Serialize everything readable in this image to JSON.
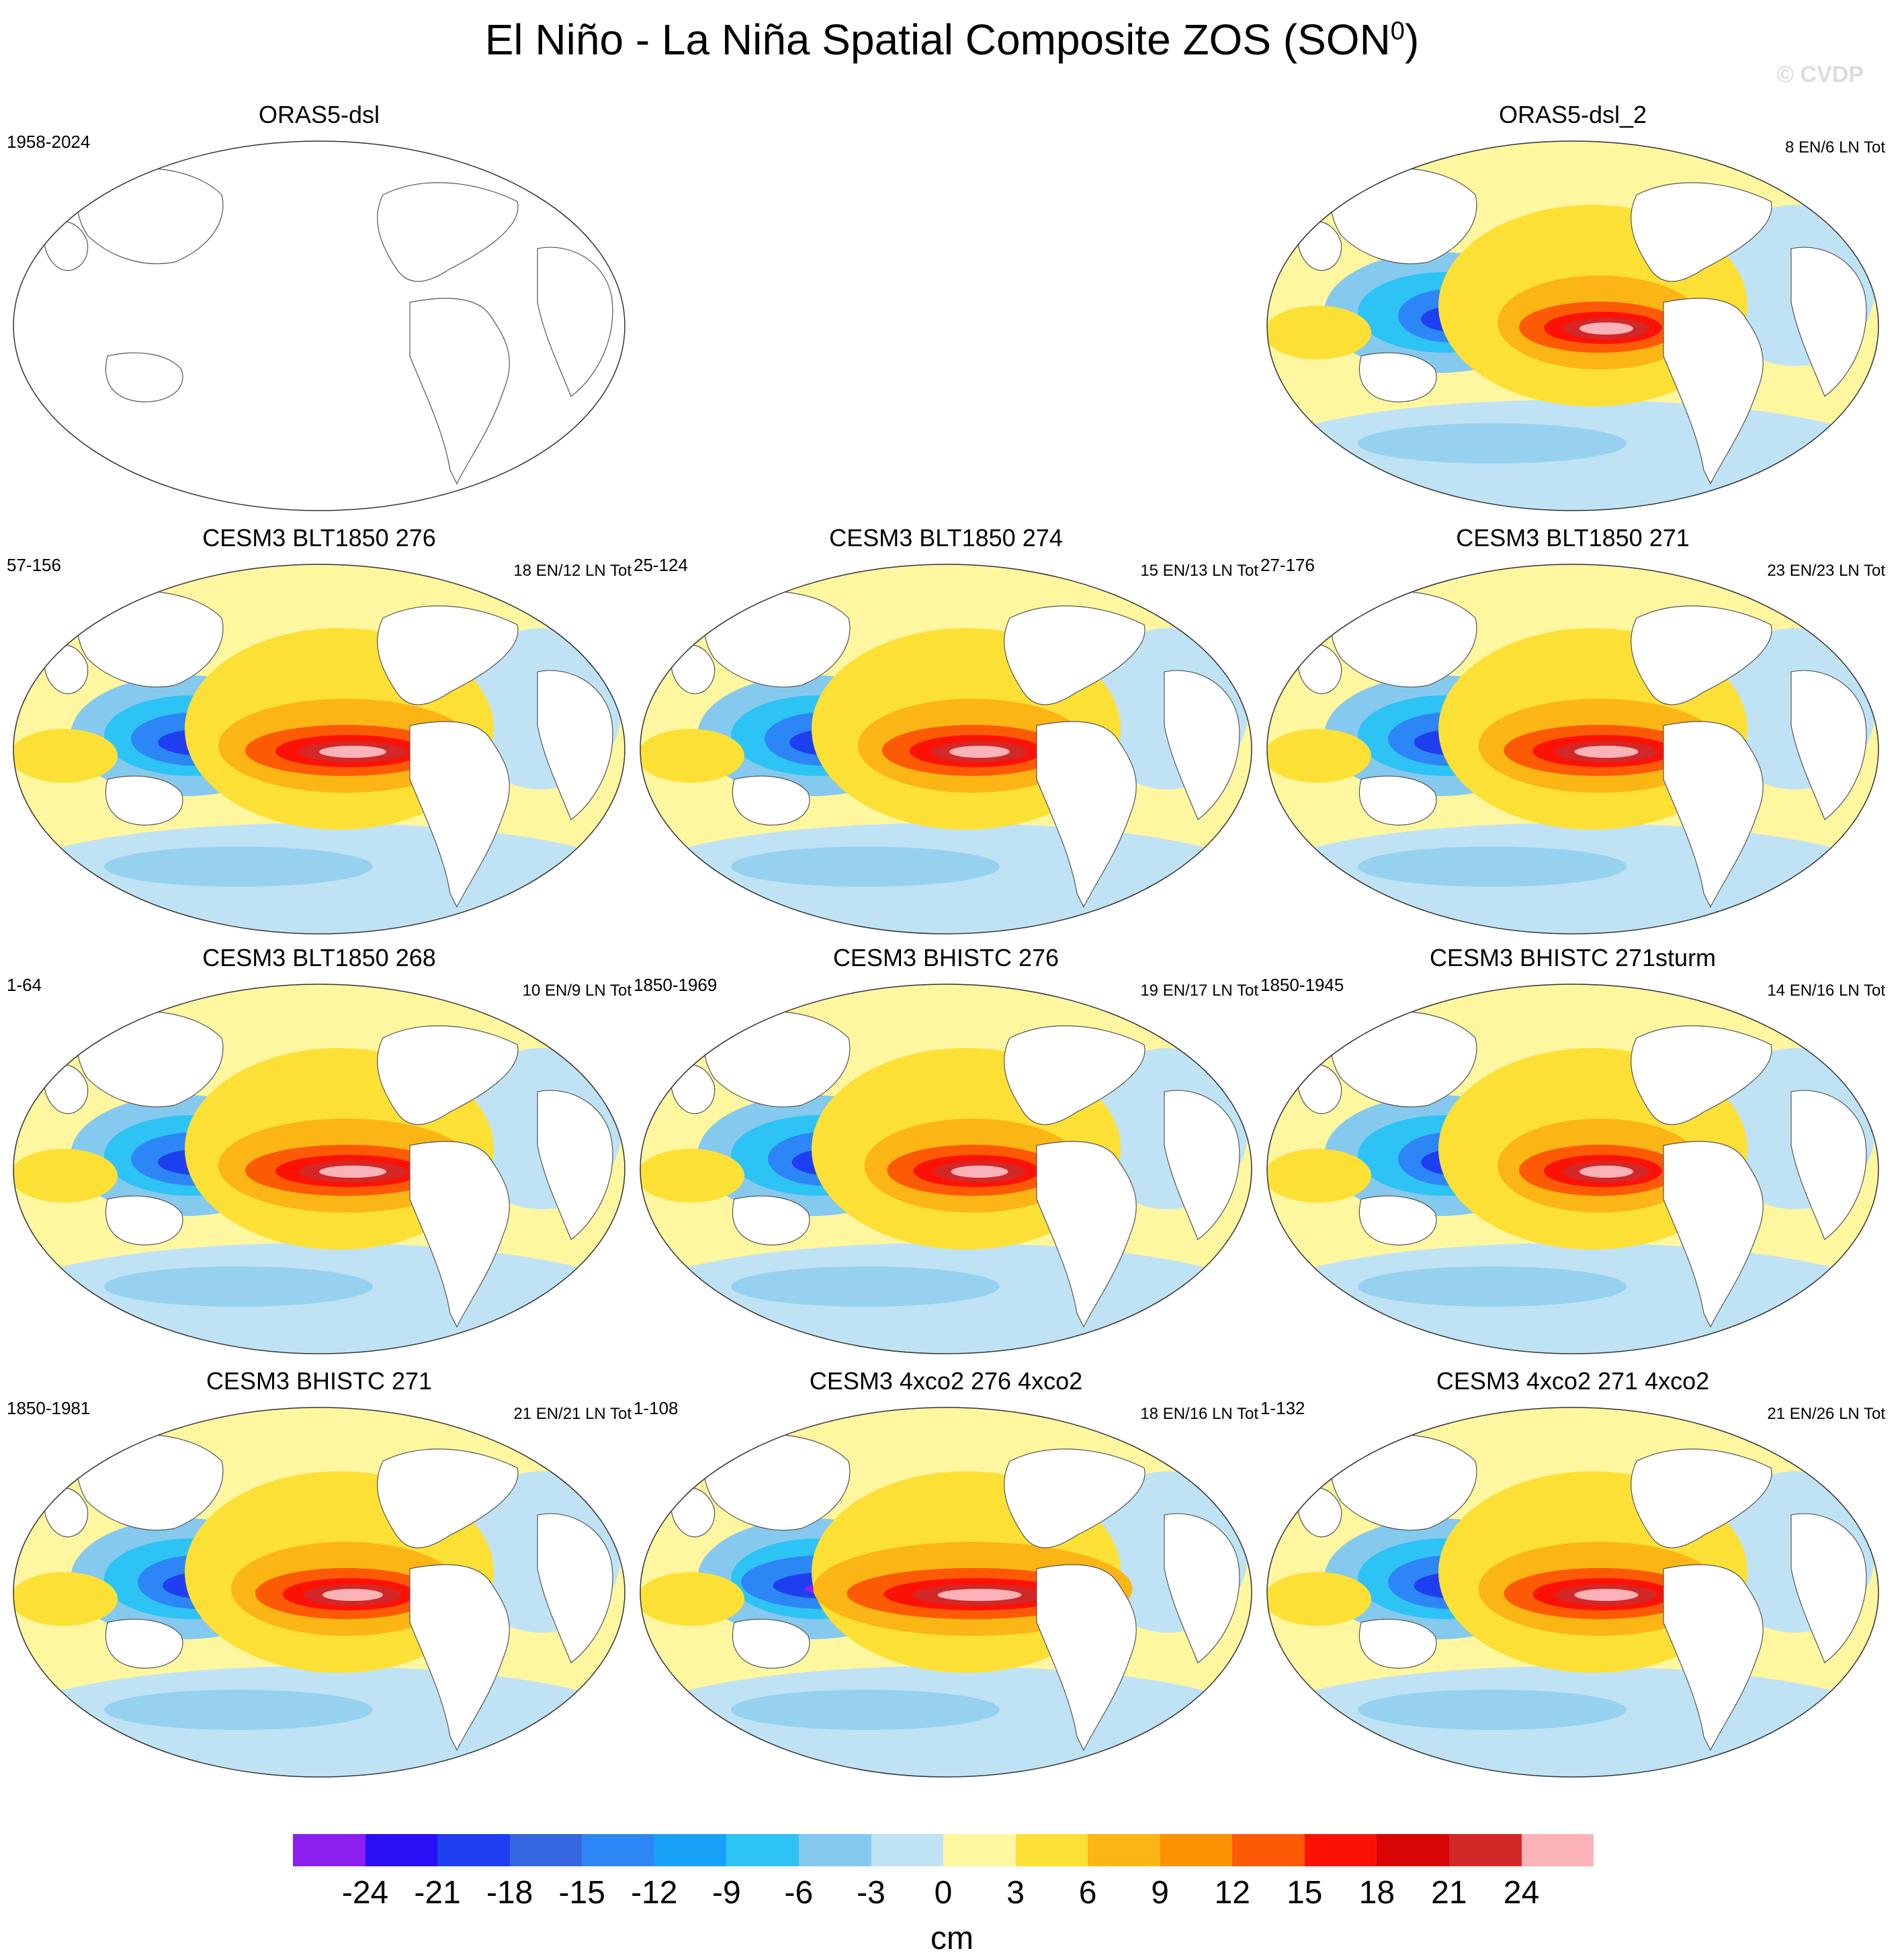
{
  "title": "El Niño - La Niña Spatial Composite ZOS (SON",
  "title_sup": "0",
  "title_close": ")",
  "copyright": "© CVDP",
  "panels": [
    {
      "title": "ORAS5-dsl",
      "left": "1958-2024",
      "right": "",
      "empty": true
    },
    {
      "title": "ORAS5-dsl_2",
      "left": "",
      "right": "8 EN/6 LN Tot",
      "empty": false,
      "strength": 0.8
    },
    {
      "title": "CESM3 BLT1850 276",
      "left": "57-156",
      "right": "18 EN/12 LN Tot",
      "empty": false,
      "strength": 1.0
    },
    {
      "title": "CESM3 BLT1850 274",
      "left": "25-124",
      "right": "15 EN/13 LN Tot",
      "empty": false,
      "strength": 0.9
    },
    {
      "title": "CESM3 BLT1850 271",
      "left": "27-176",
      "right": "23 EN/23 LN Tot",
      "empty": false,
      "strength": 0.95
    },
    {
      "title": "CESM3 BLT1850 268",
      "left": "1-64",
      "right": "10 EN/9 LN Tot",
      "empty": false,
      "strength": 1.0
    },
    {
      "title": "CESM3 BHISTC 276",
      "left": "1850-1969",
      "right": "19 EN/17 LN Tot",
      "empty": false,
      "strength": 0.85
    },
    {
      "title": "CESM3 BHISTC 271sturm",
      "left": "1850-1945",
      "right": "14 EN/16 LN Tot",
      "empty": false,
      "strength": 0.8
    },
    {
      "title": "CESM3 BHISTC 271",
      "left": "1850-1981",
      "right": "21 EN/21 LN Tot",
      "empty": false,
      "strength": 0.9
    },
    {
      "title": "CESM3 4xco2 276 4xco2",
      "left": "1-108",
      "right": "18 EN/16 LN Tot",
      "empty": false,
      "strength": 1.25
    },
    {
      "title": "CESM3 4xco2 271 4xco2",
      "left": "1-132",
      "right": "21 EN/26 LN Tot",
      "empty": false,
      "strength": 0.95
    }
  ],
  "colorbar": {
    "colors": [
      "#8b1ff0",
      "#2a0ef5",
      "#1e3ff0",
      "#3566e0",
      "#2d86f5",
      "#16a3f7",
      "#2ec3f5",
      "#86c9ee",
      "#bfe3f4",
      "#fff6a0",
      "#fde035",
      "#fbb514",
      "#fb9204",
      "#fc5a04",
      "#fc1204",
      "#d90404",
      "#d42727",
      "#fcb3b8"
    ],
    "tick_labels": [
      "-24",
      "-21",
      "-18",
      "-15",
      "-12",
      "-9",
      "-6",
      "-3",
      "0",
      "3",
      "6",
      "9",
      "12",
      "15",
      "18",
      "21",
      "24"
    ],
    "units": "cm"
  }
}
